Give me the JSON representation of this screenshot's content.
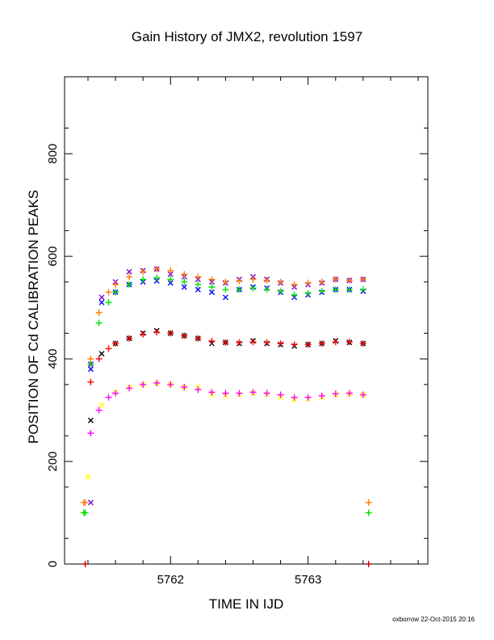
{
  "chart_data": {
    "type": "scatter",
    "title": "Gain History of JMX2, revolution 1597",
    "xlabel": "TIME IN IJD",
    "ylabel": "POSITION OF Cd CALIBRATION PEAKS",
    "footer": "oxborrow 22-Oct-2015 20:16",
    "xlim": [
      5761.23,
      5763.87
    ],
    "ylim": [
      0,
      950
    ],
    "x_ticks": [
      5762,
      5763
    ],
    "y_ticks": [
      0,
      200,
      400,
      600,
      800
    ],
    "grid": false,
    "legend": "none",
    "series": [
      {
        "marker": "x",
        "color": "#7a00d6",
        "x": [
          5761.42,
          5761.5,
          5761.6,
          5761.7,
          5761.8,
          5761.9,
          5762.0,
          5762.1,
          5762.2,
          5762.3,
          5762.4,
          5762.5,
          5762.6,
          5762.7,
          5762.8,
          5762.9,
          5763.0,
          5763.1,
          5763.2,
          5763.3,
          5763.4
        ],
        "y": [
          390,
          520,
          550,
          570,
          572,
          575,
          565,
          560,
          555,
          550,
          548,
          555,
          560,
          555,
          548,
          540,
          545,
          548,
          555,
          553,
          555
        ]
      },
      {
        "marker": "x",
        "color": "#0000ff",
        "x": [
          5761.42,
          5761.5,
          5761.6,
          5761.7,
          5761.8,
          5761.9,
          5762.0,
          5762.1,
          5762.2,
          5762.3,
          5762.4,
          5762.5,
          5762.6,
          5762.7,
          5762.8,
          5762.9,
          5763.0,
          5763.1,
          5763.2,
          5763.3,
          5763.4
        ],
        "y": [
          380,
          510,
          530,
          545,
          550,
          552,
          548,
          540,
          535,
          530,
          520,
          535,
          540,
          538,
          530,
          520,
          525,
          530,
          535,
          535,
          532
        ]
      },
      {
        "marker": "x",
        "color": "#000000",
        "x": [
          5761.42,
          5761.5,
          5761.6,
          5761.7,
          5761.8,
          5761.9,
          5762.0,
          5762.1,
          5762.2,
          5762.3,
          5762.4,
          5762.5,
          5762.6,
          5762.7,
          5762.8,
          5762.9,
          5763.0,
          5763.1,
          5763.2,
          5763.3,
          5763.4
        ],
        "y": [
          280,
          410,
          430,
          440,
          450,
          455,
          450,
          445,
          440,
          430,
          432,
          430,
          435,
          430,
          428,
          425,
          428,
          430,
          435,
          432,
          430
        ]
      },
      {
        "marker": "x",
        "color": "#ffff00",
        "x": [
          5761.4,
          5761.5,
          5761.6,
          5761.7,
          5761.8,
          5761.9,
          5762.0,
          5762.1,
          5762.2,
          5762.3,
          5762.4,
          5762.5,
          5762.6,
          5762.7,
          5762.8,
          5762.9,
          5763.0,
          5763.1,
          5763.2,
          5763.3,
          5763.4
        ],
        "y": [
          170,
          310,
          335,
          345,
          350,
          352,
          350,
          345,
          345,
          330,
          328,
          330,
          333,
          330,
          325,
          320,
          322,
          325,
          330,
          332,
          330
        ]
      },
      {
        "marker": "+",
        "color": "#ff7a00",
        "x": [
          5761.42,
          5761.48,
          5761.55,
          5761.6,
          5761.7,
          5761.8,
          5761.9,
          5762.0,
          5762.1,
          5762.2,
          5762.3,
          5762.4,
          5762.5,
          5762.6,
          5762.7,
          5762.8,
          5762.9,
          5763.0,
          5763.1,
          5763.2,
          5763.3,
          5763.4
        ],
        "y": [
          400,
          490,
          530,
          545,
          560,
          570,
          575,
          572,
          565,
          560,
          555,
          550,
          552,
          555,
          553,
          550,
          545,
          548,
          550,
          555,
          553,
          555
        ]
      },
      {
        "marker": "+",
        "color": "#00e000",
        "x": [
          5761.42,
          5761.48,
          5761.55,
          5761.6,
          5761.7,
          5761.8,
          5761.9,
          5762.0,
          5762.1,
          5762.2,
          5762.3,
          5762.4,
          5762.5,
          5762.6,
          5762.7,
          5762.8,
          5762.9,
          5763.0,
          5763.1,
          5763.2,
          5763.3,
          5763.4
        ],
        "y": [
          390,
          470,
          510,
          530,
          545,
          555,
          558,
          555,
          550,
          545,
          540,
          535,
          535,
          538,
          535,
          532,
          525,
          528,
          532,
          535,
          535,
          535
        ]
      },
      {
        "marker": "+",
        "color": "#ff0000",
        "x": [
          5761.42,
          5761.48,
          5761.55,
          5761.6,
          5761.7,
          5761.8,
          5761.9,
          5762.0,
          5762.1,
          5762.2,
          5762.3,
          5762.4,
          5762.5,
          5762.6,
          5762.7,
          5762.8,
          5762.9,
          5763.0,
          5763.1,
          5763.2,
          5763.3,
          5763.4
        ],
        "y": [
          355,
          400,
          420,
          430,
          440,
          448,
          452,
          450,
          445,
          440,
          435,
          432,
          432,
          433,
          432,
          430,
          428,
          428,
          430,
          433,
          433,
          430
        ]
      },
      {
        "marker": "+",
        "color": "#ff00ff",
        "x": [
          5761.42,
          5761.48,
          5761.55,
          5761.6,
          5761.7,
          5761.8,
          5761.9,
          5762.0,
          5762.1,
          5762.2,
          5762.3,
          5762.4,
          5762.5,
          5762.6,
          5762.7,
          5762.8,
          5762.9,
          5763.0,
          5763.1,
          5763.2,
          5763.3,
          5763.4
        ],
        "y": [
          255,
          300,
          325,
          333,
          343,
          350,
          353,
          350,
          345,
          340,
          335,
          333,
          333,
          335,
          333,
          330,
          325,
          325,
          328,
          332,
          333,
          330
        ]
      },
      {
        "marker": "+",
        "color": "#ff7a00",
        "x": [
          5761.37,
          5761.38,
          5763.44
        ],
        "y": [
          120,
          120,
          120
        ]
      },
      {
        "marker": "+",
        "color": "#00e000",
        "x": [
          5761.37,
          5761.38,
          5763.44
        ],
        "y": [
          100,
          100,
          100
        ]
      },
      {
        "marker": "x",
        "color": "#7a00d6",
        "x": [
          5761.42
        ],
        "y": [
          120
        ]
      },
      {
        "marker": "+",
        "color": "#cc0000",
        "x": [
          5761.38,
          5763.44
        ],
        "y": [
          0,
          0
        ]
      }
    ]
  }
}
